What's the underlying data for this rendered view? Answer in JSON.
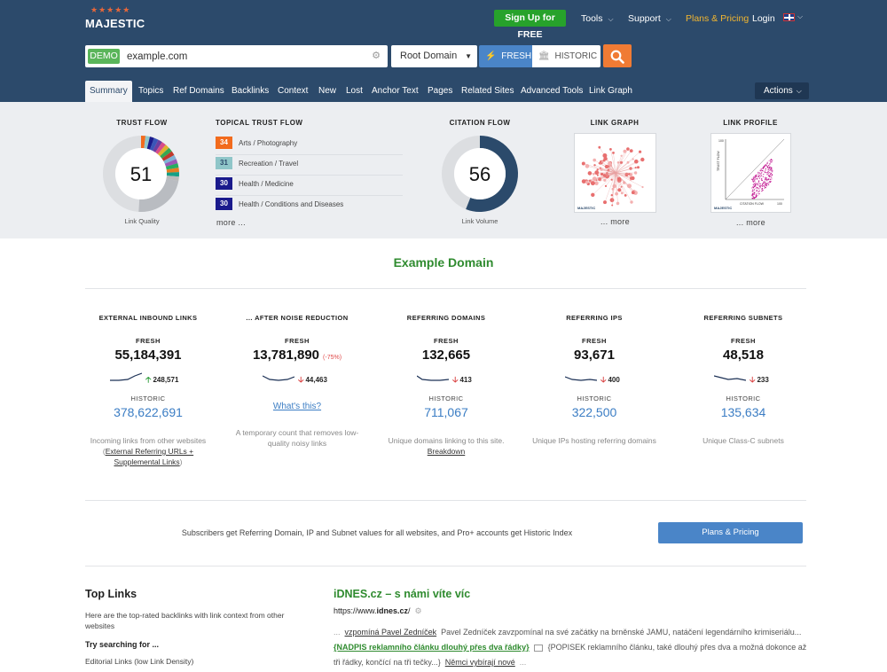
{
  "brand": "MAJESTIC",
  "header": {
    "signup": "Sign Up for FREE",
    "nav": [
      {
        "label": "Tools",
        "has_menu": true
      },
      {
        "label": "Support",
        "has_menu": true
      },
      {
        "label": "Plans & Pricing",
        "has_menu": false
      },
      {
        "label": "Login",
        "has_menu": false
      }
    ],
    "language": "English (UK flag)"
  },
  "search": {
    "badge": "DEMO",
    "value": "example.com",
    "scope": "Root Domain",
    "fresh_label": "FRESH",
    "historic_label": "HISTORIC"
  },
  "tabs": [
    "Summary",
    "Topics",
    "Ref Domains",
    "Backlinks",
    "Context",
    "New",
    "Lost",
    "Anchor Text",
    "Pages",
    "Related Sites",
    "Advanced Tools",
    "Link Graph"
  ],
  "active_tab": "Summary",
  "actions_label": "Actions",
  "summary": {
    "trust_flow": {
      "title": "TRUST FLOW",
      "value": "51",
      "caption": "Link Quality"
    },
    "topical_trust_flow": {
      "title": "TOPICAL TRUST FLOW",
      "items": [
        {
          "score": "34",
          "topic": "Arts / Photography",
          "color": "#f26b1d"
        },
        {
          "score": "31",
          "topic": "Recreation / Travel",
          "color": "#8fc6c9"
        },
        {
          "score": "30",
          "topic": "Health / Medicine",
          "color": "#1a1a8c"
        },
        {
          "score": "30",
          "topic": "Health / Conditions and Diseases",
          "color": "#1a1a8c"
        }
      ],
      "more": "more ..."
    },
    "citation_flow": {
      "title": "CITATION FLOW",
      "value": "56",
      "caption": "Link Volume"
    },
    "link_graph": {
      "title": "LINK GRAPH",
      "more": "... more"
    },
    "link_profile": {
      "title": "LINK PROFILE",
      "more": "... more",
      "x_label": "CITATION FLOW",
      "y_label": "TRUST FLOW",
      "axis_max": "100"
    }
  },
  "domain_title": "Example Domain",
  "stats": [
    {
      "header": "EXTERNAL INBOUND LINKS",
      "fresh_label": "FRESH",
      "fresh_value": "55,184,391",
      "delta": "248,571",
      "delta_dir": "up",
      "historic_label": "HISTORIC",
      "historic_value": "378,622,691",
      "desc_pre": "Incoming links from other websites (",
      "desc_link": "External Referring URLs + Supplemental Links",
      "desc_post": ")"
    },
    {
      "header": "... AFTER NOISE REDUCTION",
      "fresh_label": "FRESH",
      "fresh_value": "13,781,890",
      "pct": "(-75%)",
      "delta": "44,463",
      "delta_dir": "down",
      "whats_this": "What's this?",
      "desc_pre": "A temporary count that removes low-quality noisy links",
      "desc_link": "",
      "desc_post": ""
    },
    {
      "header": "REFERRING DOMAINS",
      "fresh_label": "FRESH",
      "fresh_value": "132,665",
      "delta": "413",
      "delta_dir": "down",
      "historic_label": "HISTORIC",
      "historic_value": "711,067",
      "desc_pre": "Unique domains linking to this site. ",
      "desc_link": "Breakdown",
      "desc_post": ""
    },
    {
      "header": "REFERRING IPS",
      "fresh_label": "FRESH",
      "fresh_value": "93,671",
      "delta": "400",
      "delta_dir": "down",
      "historic_label": "HISTORIC",
      "historic_value": "322,500",
      "desc_pre": "Unique IPs hosting referring domains",
      "desc_link": "",
      "desc_post": ""
    },
    {
      "header": "REFERRING SUBNETS",
      "fresh_label": "FRESH",
      "fresh_value": "48,518",
      "delta": "233",
      "delta_dir": "down",
      "historic_label": "HISTORIC",
      "historic_value": "135,634",
      "desc_pre": "Unique Class-C subnets",
      "desc_link": "",
      "desc_post": ""
    }
  ],
  "subscriber_note": "Subscribers get Referring Domain, IP and Subnet values for all websites, and Pro+ accounts get Historic Index",
  "plans_button": "Plans & Pricing",
  "top_links": {
    "title": "Top Links",
    "intro": "Here are the top-rated backlinks with link context from other websites",
    "try_title": "Try searching for ...",
    "editorial": "Editorial Links (low Link Density)"
  },
  "featured_link": {
    "title": "iDNES.cz – s námi víte víc",
    "url_pre": "https://www.",
    "url_bold": "idnes.cz",
    "url_post": "/",
    "s1": "...",
    "s2": "vzpomíná Pavel Zedníček",
    "s3": "Pavel Zedníček zavzpomínal na své začátky na brněnské JAMU, natáčení legendárního krimiseriálu...",
    "s4": "{NADPIS reklamního článku dlouhý přes dva řádky}",
    "s5": "{POPISEK reklamního článku, také dlouhý přes dva a možná dokonce až tři řádky, končící na tři tečky...}",
    "s6": "Němci vybírají nové",
    "s7": "..."
  },
  "colors": {
    "header_bg": "#2c4a6b",
    "summary_bg": "#eceef1",
    "accent_green": "#2f8b2f",
    "link_blue": "#3b7dc4",
    "search_orange": "#f07b34",
    "citation_flow_ring": "#2b4a6b",
    "trust_flow_ring": "#b9bcc1"
  }
}
